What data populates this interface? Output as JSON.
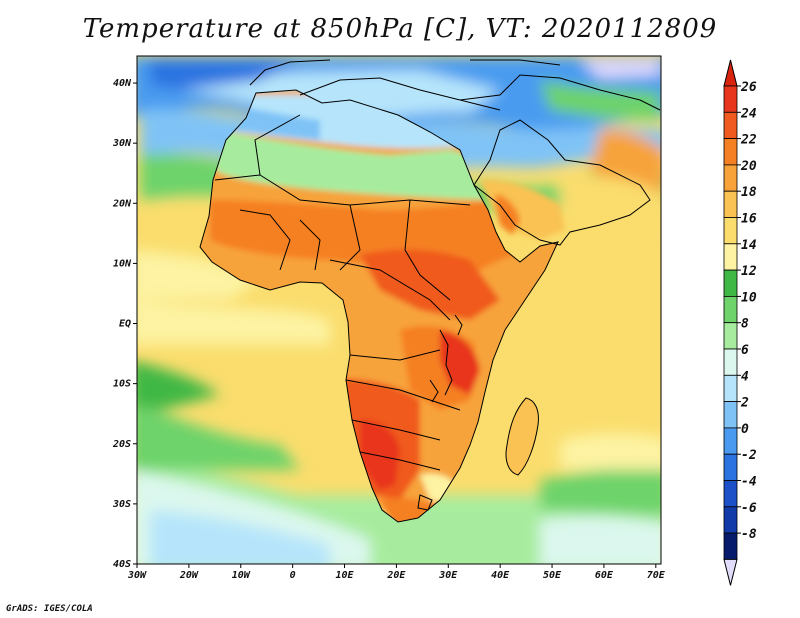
{
  "title": "Temperature at 850hPa [C], VT: 2020112809",
  "credit": "GrADS: IGES/COLA",
  "map": {
    "projection": "lat-lon",
    "lon_range": [
      -30,
      75
    ],
    "lat_range": [
      -40,
      45
    ],
    "x_ticks": [
      "30W",
      "20W",
      "10W",
      "0",
      "10E",
      "20E",
      "30E",
      "40E",
      "50E",
      "60E",
      "70E"
    ],
    "y_ticks": [
      "40N",
      "30N",
      "20N",
      "10N",
      "EQ",
      "10S",
      "20S",
      "30S",
      "40S"
    ]
  },
  "colorbar": {
    "labels": [
      "26",
      "24",
      "22",
      "20",
      "18",
      "16",
      "14",
      "12",
      "10",
      "8",
      "6",
      "4",
      "2",
      "0",
      "-2",
      "-4",
      "-6",
      "-8"
    ],
    "colors": [
      "#e8361d",
      "#f05a1e",
      "#f58023",
      "#f7a33a",
      "#f9c252",
      "#fadd6d",
      "#fdf3a2",
      "#3fb845",
      "#6dd36a",
      "#a7ec9e",
      "#dcf8ee",
      "#b6e5fb",
      "#7fc3f6",
      "#4a9bf0",
      "#2b73e1",
      "#1c50c8",
      "#123aa8",
      "#071b6c"
    ],
    "over_color": "#d8230d",
    "under_color": "#e2dcfb"
  }
}
